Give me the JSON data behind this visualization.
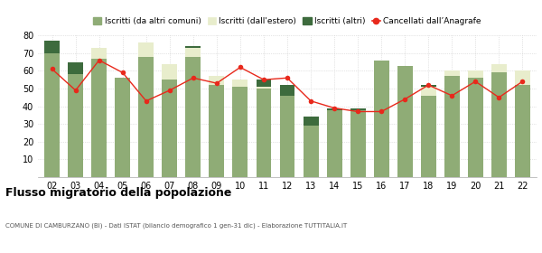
{
  "years": [
    "02",
    "03",
    "04",
    "05",
    "06",
    "07",
    "08",
    "09",
    "10",
    "11",
    "12",
    "13",
    "14",
    "15",
    "16",
    "17",
    "18",
    "19",
    "20",
    "21",
    "22"
  ],
  "iscritti_comuni": [
    70,
    58,
    67,
    56,
    68,
    55,
    68,
    52,
    51,
    50,
    46,
    29,
    38,
    38,
    66,
    63,
    46,
    57,
    56,
    59,
    52
  ],
  "iscritti_estero": [
    0,
    0,
    6,
    0,
    8,
    9,
    5,
    5,
    4,
    1,
    0,
    0,
    0,
    0,
    0,
    0,
    5,
    3,
    4,
    5,
    8
  ],
  "iscritti_altri": [
    7,
    7,
    0,
    0,
    0,
    0,
    1,
    0,
    0,
    4,
    6,
    5,
    1,
    1,
    0,
    0,
    1,
    0,
    0,
    0,
    0
  ],
  "cancellati": [
    61,
    49,
    66,
    59,
    43,
    49,
    56,
    53,
    62,
    55,
    56,
    43,
    39,
    37,
    37,
    44,
    52,
    46,
    54,
    45,
    54
  ],
  "color_comuni": "#8fac76",
  "color_estero": "#e8edcc",
  "color_altri": "#3d6b3d",
  "color_cancellati": "#e8291c",
  "title": "Flusso migratorio della popolazione",
  "subtitle": "COMUNE DI CAMBURZANO (BI) - Dati ISTAT (bilancio demografico 1 gen-31 dic) - Elaborazione TUTTITALIA.IT",
  "legend_labels": [
    "Iscritti (da altri comuni)",
    "Iscritti (dall'estero)",
    "Iscritti (altri)",
    "Cancellati dall’Anagrafe"
  ],
  "ylim": [
    0,
    80
  ],
  "yticks": [
    0,
    10,
    20,
    30,
    40,
    50,
    60,
    70,
    80
  ]
}
